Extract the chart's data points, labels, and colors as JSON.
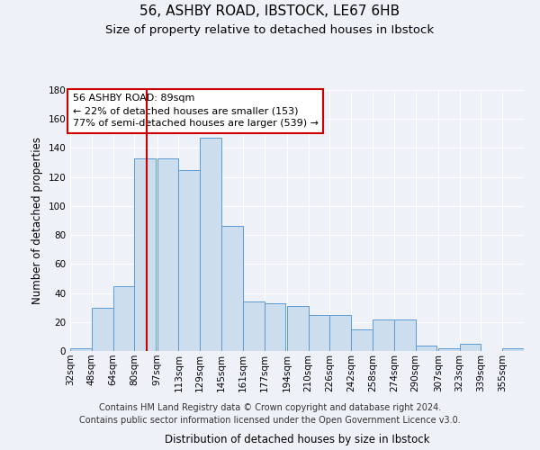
{
  "title": "56, ASHBY ROAD, IBSTOCK, LE67 6HB",
  "subtitle": "Size of property relative to detached houses in Ibstock",
  "xlabel": "Distribution of detached houses by size in Ibstock",
  "ylabel": "Number of detached properties",
  "bin_labels": [
    "32sqm",
    "48sqm",
    "64sqm",
    "80sqm",
    "97sqm",
    "113sqm",
    "129sqm",
    "145sqm",
    "161sqm",
    "177sqm",
    "194sqm",
    "210sqm",
    "226sqm",
    "242sqm",
    "258sqm",
    "274sqm",
    "290sqm",
    "307sqm",
    "323sqm",
    "339sqm",
    "355sqm"
  ],
  "bin_edges": [
    32,
    48,
    64,
    80,
    97,
    113,
    129,
    145,
    161,
    177,
    194,
    210,
    226,
    242,
    258,
    274,
    290,
    307,
    323,
    339,
    355
  ],
  "bar_heights": [
    2,
    30,
    45,
    133,
    133,
    125,
    147,
    86,
    34,
    33,
    31,
    25,
    25,
    15,
    22,
    22,
    4,
    2,
    5,
    0,
    2
  ],
  "bar_color": "#ccdded",
  "bar_edge_color": "#5b9bd5",
  "vline_x": 89,
  "vline_color": "#cc0000",
  "ylim": [
    0,
    180
  ],
  "yticks": [
    0,
    20,
    40,
    60,
    80,
    100,
    120,
    140,
    160,
    180
  ],
  "annotation_line1": "56 ASHBY ROAD: 89sqm",
  "annotation_line2": "← 22% of detached houses are smaller (153)",
  "annotation_line3": "77% of semi-detached houses are larger (539) →",
  "annotation_box_color": "#ffffff",
  "annotation_box_edge": "#cc0000",
  "footer_line1": "Contains HM Land Registry data © Crown copyright and database right 2024.",
  "footer_line2": "Contains public sector information licensed under the Open Government Licence v3.0.",
  "background_color": "#eef2f8",
  "grid_color": "#ffffff",
  "title_fontsize": 11,
  "subtitle_fontsize": 9.5,
  "axis_label_fontsize": 8.5,
  "tick_fontsize": 7.5,
  "annotation_fontsize": 8,
  "footer_fontsize": 7
}
